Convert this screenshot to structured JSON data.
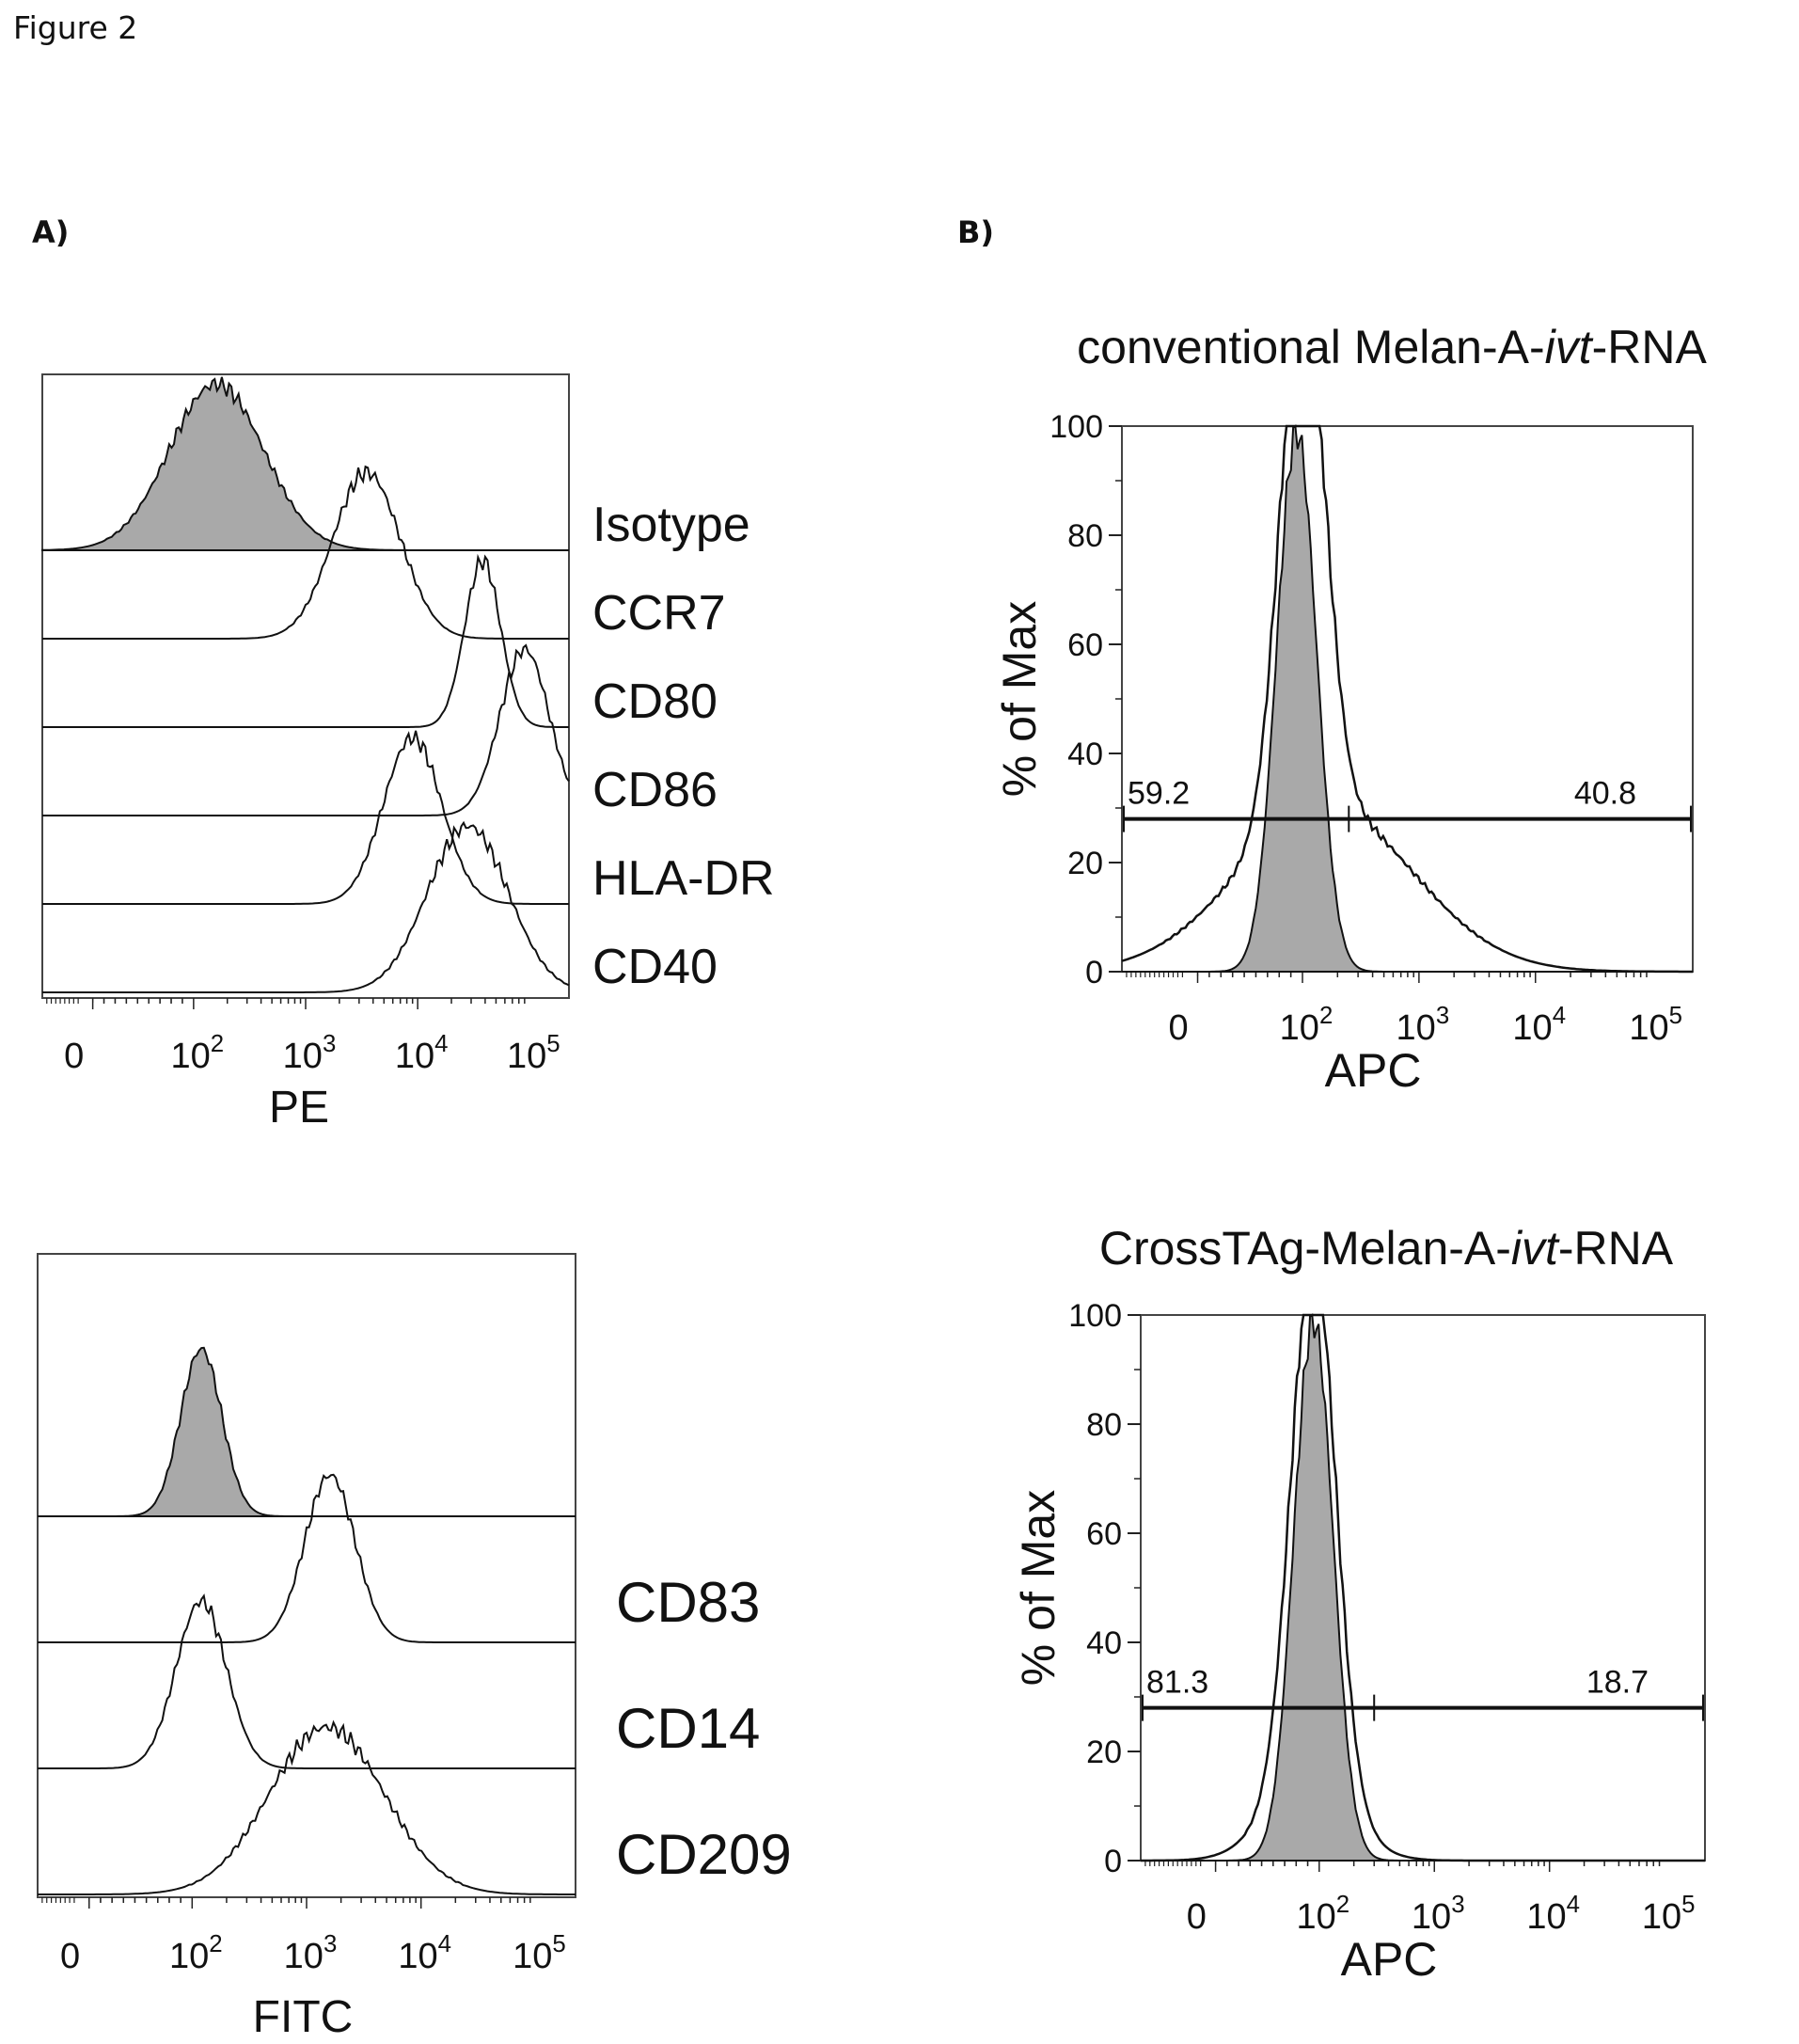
{
  "figure_title": "Figure 2",
  "panels": {
    "a": "A)",
    "b": "B)"
  },
  "colors": {
    "fill": "#a9a9a9",
    "line": "#111111",
    "frame": "#444444"
  },
  "chart_data": [
    {
      "type": "area",
      "layout": "stacked-offset histograms",
      "xlabel": "PE",
      "x_scale": "biexponential",
      "xticks": [
        "0",
        "10^2",
        "10^3",
        "10^4",
        "10^5"
      ],
      "legend_placement": "right of each trace",
      "series": [
        {
          "name": "Isotype",
          "filled": true,
          "peak_x": 160,
          "spread": 0.42
        },
        {
          "name": "CCR7",
          "filled": false,
          "peak_x": 3500,
          "spread": 0.3
        },
        {
          "name": "CD80",
          "filled": false,
          "peak_x": 38000,
          "spread": 0.16
        },
        {
          "name": "CD86",
          "filled": false,
          "peak_x": 90000,
          "spread": 0.22
        },
        {
          "name": "HLA-DR",
          "filled": false,
          "peak_x": 9000,
          "spread": 0.26
        },
        {
          "name": "CD40",
          "filled": false,
          "peak_x": 28000,
          "spread": 0.36
        }
      ]
    },
    {
      "type": "area",
      "layout": "stacked-offset histograms",
      "xlabel": "FITC",
      "x_scale": "biexponential",
      "xticks": [
        "0",
        "10^2",
        "10^3",
        "10^4",
        "10^5"
      ],
      "legend_placement": "right of each trace",
      "series": [
        {
          "name": "",
          "filled": true,
          "peak_x": 120,
          "spread": 0.18
        },
        {
          "name": "CD83",
          "filled": false,
          "peak_x": 1600,
          "spread": 0.22
        },
        {
          "name": "CD14",
          "filled": false,
          "peak_x": 120,
          "spread": 0.22
        },
        {
          "name": "CD209",
          "filled": false,
          "peak_x": 1500,
          "spread": 0.5
        }
      ]
    },
    {
      "type": "area",
      "title": "conventional Melan-A-ivt-RNA",
      "title_parts": [
        "conventional Melan-A-",
        "ivt",
        "-RNA"
      ],
      "xlabel": "APC",
      "ylabel": "% of Max",
      "x_scale": "biexponential",
      "xticks": [
        "0",
        "10^2",
        "10^3",
        "10^4",
        "10^5"
      ],
      "yticks": [
        0,
        20,
        40,
        60,
        80,
        100
      ],
      "ylim": [
        0,
        100
      ],
      "gate": {
        "level": 28,
        "left_pct": "59.2",
        "right_pct": "40.8"
      },
      "series": [
        {
          "name": "",
          "filled": true,
          "peak_x": 95,
          "peak_y": 99
        },
        {
          "name": "",
          "filled": false,
          "peak_x": 100,
          "peak_y": 98
        }
      ]
    },
    {
      "type": "area",
      "title": "CrossTAg-Melan-A-ivt-RNA",
      "title_parts": [
        "CrossTAg-Melan-A-",
        "ivt",
        "-RNA"
      ],
      "xlabel": "APC",
      "ylabel": "% of Max",
      "x_scale": "biexponential",
      "xticks": [
        "0",
        "10^2",
        "10^3",
        "10^4",
        "10^5"
      ],
      "yticks": [
        0,
        20,
        40,
        60,
        80,
        100
      ],
      "ylim": [
        0,
        100
      ],
      "gate": {
        "level": 28,
        "left_pct": "81.3",
        "right_pct": "18.7"
      },
      "series": [
        {
          "name": "",
          "filled": true,
          "peak_x": 95,
          "peak_y": 99
        },
        {
          "name": "",
          "filled": false,
          "peak_x": 95,
          "peak_y": 98
        }
      ]
    }
  ]
}
